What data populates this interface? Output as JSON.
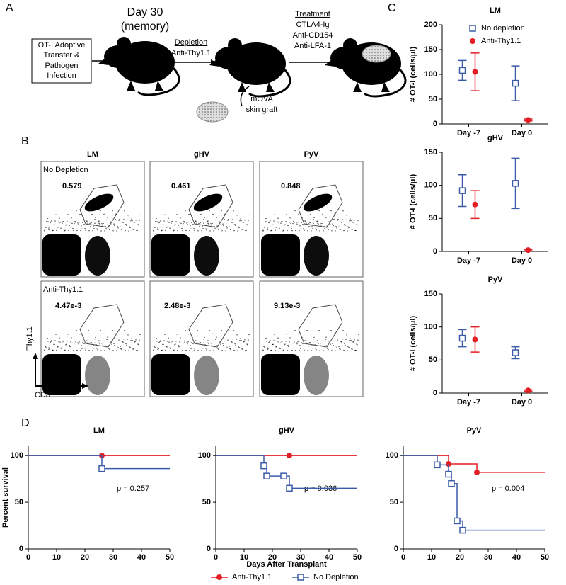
{
  "panel_labels": [
    "A",
    "B",
    "C",
    "D"
  ],
  "diagram": {
    "day_label": "Day 30",
    "memory": "(memory)",
    "box": [
      "OT-I Adoptive",
      "Transfer &",
      "Pathogen",
      "Infection"
    ],
    "depletion_title": "Depletion",
    "depletion": "Anti-Thy1.1",
    "graft": [
      "mOVA",
      "skin graft"
    ],
    "treatment_title": "Treatment",
    "treatment": [
      "CTLA4-Ig",
      "Anti-CD154",
      "Anti-LFA-1"
    ]
  },
  "flow": {
    "columns": [
      "LM",
      "gHV",
      "PyV"
    ],
    "rows": [
      "No Depletion",
      "Anti-Thy1.1"
    ],
    "gates": [
      [
        "0.579",
        "0.461",
        "0.848"
      ],
      [
        "4.47e-3",
        "2.48e-3",
        "9.13e-3"
      ]
    ],
    "y_axis": "Thy1.1",
    "x_axis": "CD8"
  },
  "chart_data": [
    {
      "type": "errorbar",
      "title": "LM",
      "y_label": "# OT-I (cells/μl)",
      "categories": [
        "Day -7",
        "Day 0"
      ],
      "ylim": [
        0,
        200
      ],
      "yticks": [
        0,
        50,
        100,
        150,
        200
      ],
      "series": [
        {
          "name": "No depletion",
          "color": "#3b5ba9",
          "marker": "square",
          "values": [
            108,
            82
          ],
          "errors": [
            20,
            35
          ]
        },
        {
          "name": "Anti-Thy1.1",
          "color": "#e31e24",
          "marker": "circle",
          "values": [
            105,
            8
          ],
          "errors": [
            38,
            2
          ]
        }
      ]
    },
    {
      "type": "errorbar",
      "title": "gHV",
      "y_label": "# OT-I (cells/μl)",
      "categories": [
        "Day -7",
        "Day 0"
      ],
      "ylim": [
        0,
        150
      ],
      "yticks": [
        0,
        50,
        100,
        150
      ],
      "series": [
        {
          "color": "#3b5ba9",
          "marker": "square",
          "values": [
            92,
            103
          ],
          "errors": [
            24,
            38
          ]
        },
        {
          "color": "#e31e24",
          "marker": "circle",
          "values": [
            71,
            2
          ],
          "errors": [
            21,
            1
          ]
        }
      ]
    },
    {
      "type": "errorbar",
      "title": "PyV",
      "y_label": "# OT-I (cells/μl)",
      "categories": [
        "Day -7",
        "Day 0"
      ],
      "ylim": [
        0,
        150
      ],
      "yticks": [
        0,
        50,
        100,
        150
      ],
      "series": [
        {
          "color": "#3b5ba9",
          "marker": "square",
          "values": [
            83,
            61
          ],
          "errors": [
            13,
            9
          ]
        },
        {
          "color": "#e31e24",
          "marker": "circle",
          "values": [
            81,
            4
          ],
          "errors": [
            19,
            1
          ]
        }
      ]
    },
    {
      "type": "step",
      "title": "LM",
      "y_label": "Percent survival",
      "annotation": "p = 0.257",
      "xlim": [
        0,
        50
      ],
      "xticks": [
        0,
        10,
        20,
        30,
        40,
        50
      ],
      "ylim": [
        0,
        110
      ],
      "yticks": [
        0,
        50,
        100
      ],
      "series": [
        {
          "color": "#e31e24",
          "marker": "circle",
          "x": [
            0,
            26,
            50
          ],
          "values": [
            100,
            100,
            100
          ]
        },
        {
          "color": "#3b5ba9",
          "marker": "square",
          "x": [
            0,
            26,
            50
          ],
          "values": [
            100,
            86,
            86
          ]
        }
      ]
    },
    {
      "type": "step",
      "title": "gHV",
      "x_label": "Days After Transplant",
      "annotation": "p = 0.036",
      "xlim": [
        0,
        50
      ],
      "xticks": [
        0,
        10,
        20,
        30,
        40,
        50
      ],
      "ylim": [
        0,
        110
      ],
      "yticks": [
        0,
        50,
        100
      ],
      "series": [
        {
          "name": "Anti-Thy1.1",
          "color": "#e31e24",
          "marker": "circle",
          "x": [
            0,
            26,
            50
          ],
          "values": [
            100,
            100,
            100
          ]
        },
        {
          "name": "No Depletion",
          "color": "#3b5ba9",
          "marker": "square",
          "x": [
            0,
            17,
            18,
            24,
            26,
            50
          ],
          "values": [
            100,
            89,
            78,
            78,
            65,
            65
          ]
        }
      ]
    },
    {
      "type": "step",
      "title": "PyV",
      "annotation": "p = 0.004",
      "xlim": [
        0,
        50
      ],
      "xticks": [
        0,
        10,
        20,
        30,
        40,
        50
      ],
      "ylim": [
        0,
        110
      ],
      "yticks": [
        0,
        50,
        100
      ],
      "series": [
        {
          "color": "#e31e24",
          "marker": "circle",
          "x": [
            0,
            16,
            26,
            50
          ],
          "values": [
            100,
            91,
            82,
            82
          ]
        },
        {
          "color": "#3b5ba9",
          "marker": "square",
          "x": [
            0,
            12,
            16,
            17,
            19,
            21,
            50
          ],
          "values": [
            100,
            90,
            80,
            70,
            30,
            20,
            20
          ]
        }
      ]
    }
  ]
}
